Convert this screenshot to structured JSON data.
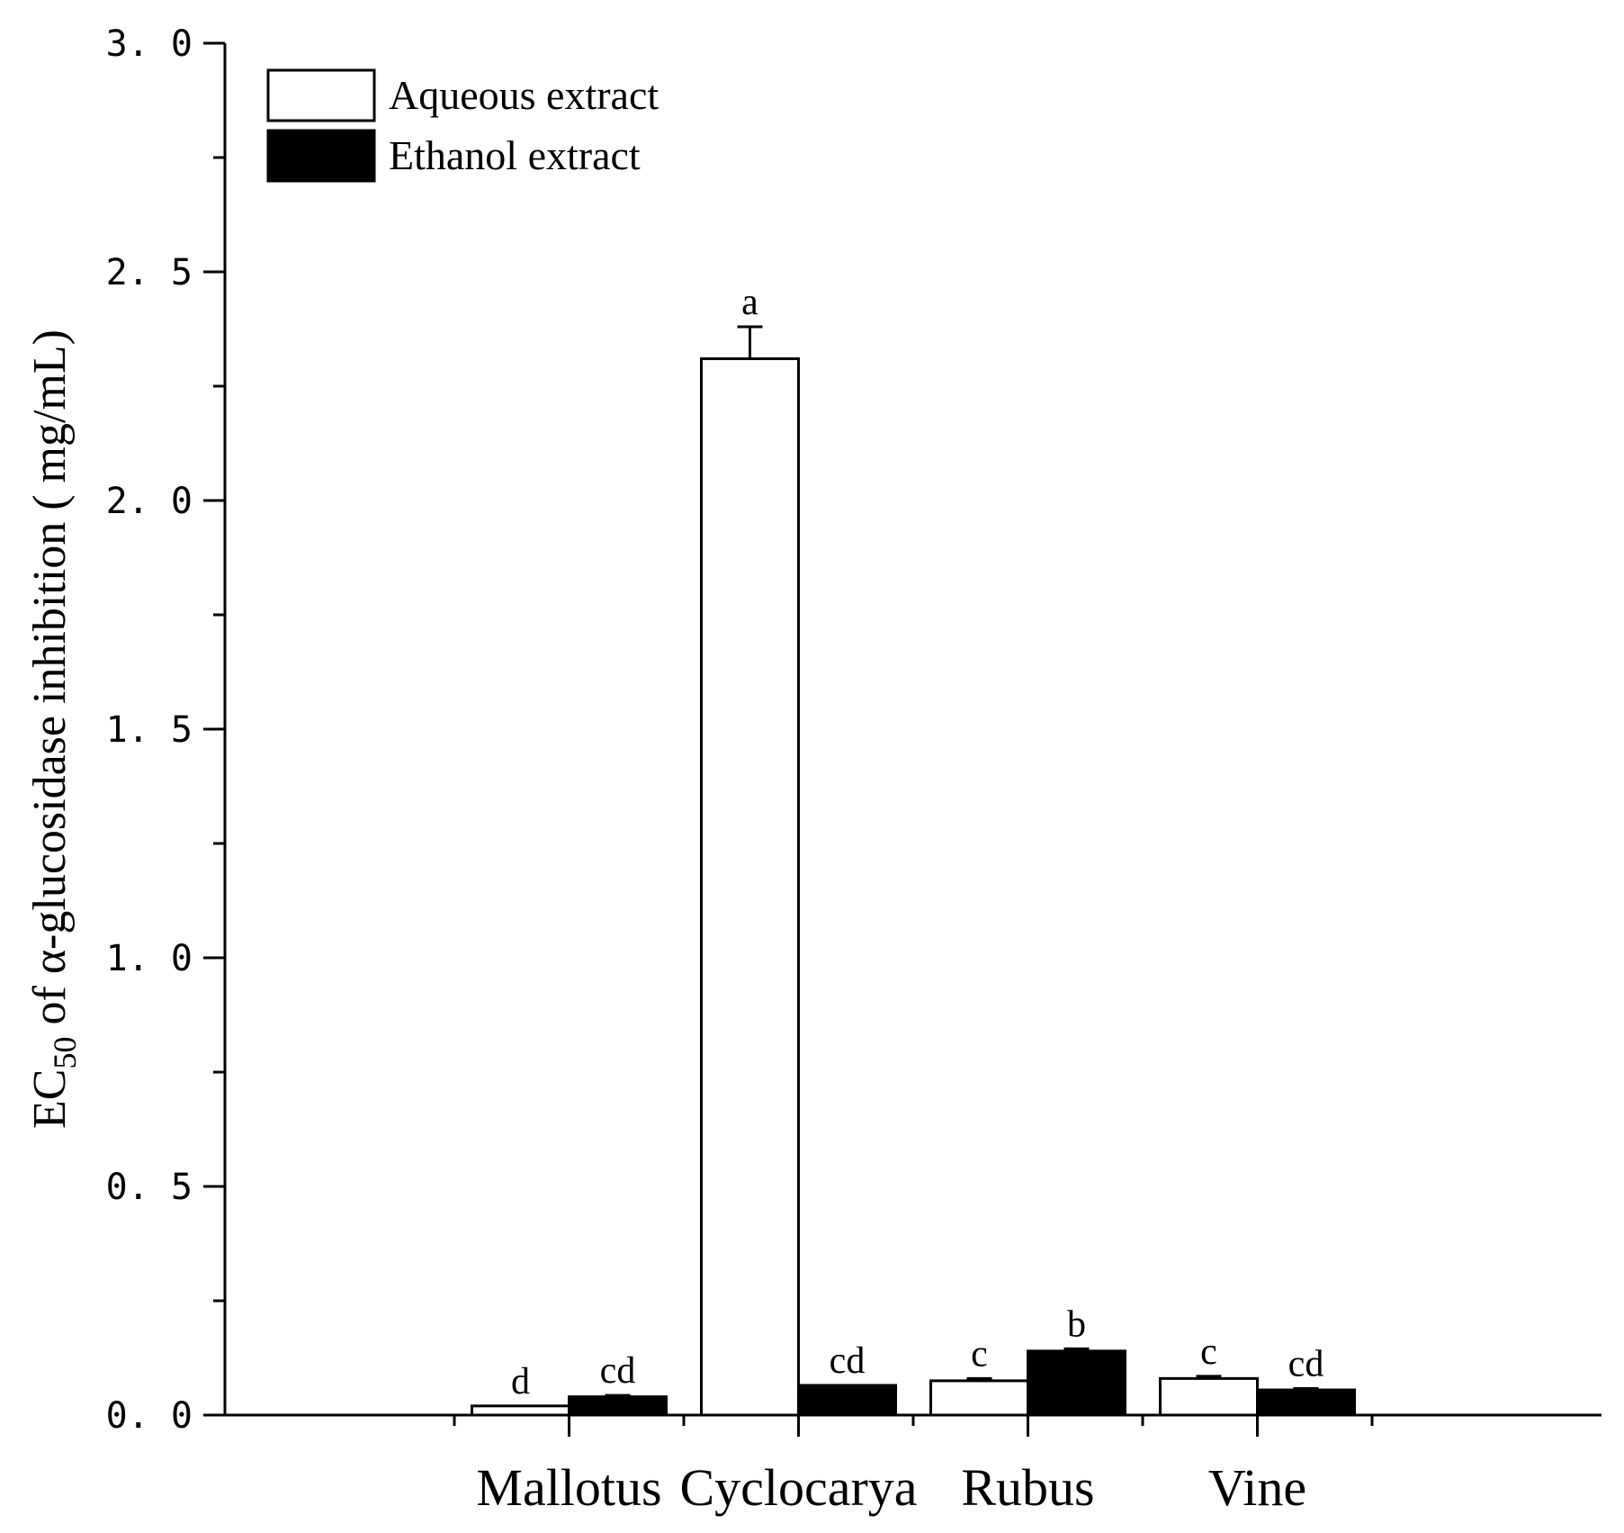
{
  "chart_data": {
    "type": "bar",
    "categories": [
      "Mallotus",
      "Cyclocarya",
      "Rubus",
      "Vine"
    ],
    "series": [
      {
        "name": "Aqueous extract",
        "fill": "#ffffff",
        "values": [
          0.02,
          2.31,
          0.075,
          0.08
        ],
        "errors": [
          0.0,
          0.07,
          0.005,
          0.005
        ],
        "letters": [
          "d",
          "a",
          "c",
          "c"
        ]
      },
      {
        "name": "Ethanol extract",
        "fill": "#000000",
        "values": [
          0.04,
          0.065,
          0.14,
          0.055
        ],
        "errors": [
          0.003,
          0.0,
          0.005,
          0.003
        ],
        "letters": [
          "cd",
          "cd",
          "b",
          "cd"
        ]
      }
    ],
    "ylabel": {
      "prefix": "EC",
      "subscript": "50",
      "rest": " of α-glucosidase inhibition ( mg/mL)"
    },
    "xlabel": "",
    "ylim": [
      0,
      3.0
    ],
    "yticks": [
      0.0,
      0.5,
      1.0,
      1.5,
      2.0,
      2.5,
      3.0
    ],
    "ytick_labels": [
      "0. 0",
      "0. 5",
      "1. 0",
      "1. 5",
      "2. 0",
      "2. 5",
      "3. 0"
    ],
    "legend_position": "top-left",
    "grid": false
  }
}
